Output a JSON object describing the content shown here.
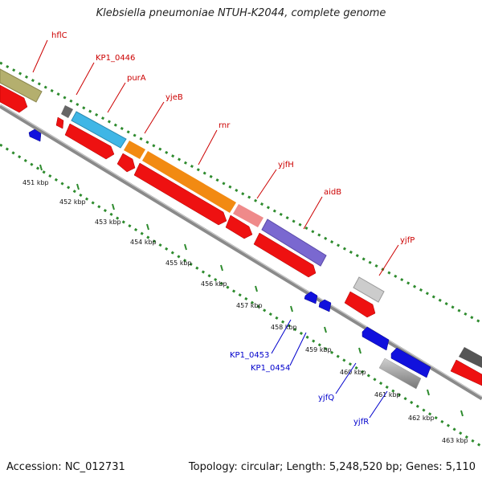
{
  "title": "Klebsiella pneumoniae NTUH-K2044, complete genome",
  "footer": {
    "accession": "Accession: NC_012731",
    "info": "Topology: circular; Length: 5,248,520 bp; Genes: 5,110"
  },
  "colors": {
    "backbone": "#888888",
    "dots": "#2e8b2e",
    "forward_label": "#cc0000",
    "reverse_label": "#0000cc",
    "cds_red": "#ee1111",
    "cds_blue": "#1111dd"
  },
  "kbp_ticks": [
    "451 kbp",
    "452 kbp",
    "453 kbp",
    "454 kbp",
    "455 kbp",
    "456 kbp",
    "457 kbp",
    "458 kbp",
    "459 kbp",
    "460 kbp",
    "461 kbp",
    "462 kbp",
    "463 kbp"
  ],
  "forward_labels": [
    "hflC",
    "KP1_0446",
    "purA",
    "yjeB",
    "rnr",
    "yjfH",
    "aidB",
    "yjfP"
  ],
  "reverse_labels": [
    "KP1_0453",
    "KP1_0454",
    "yjfQ",
    "yjfR"
  ]
}
